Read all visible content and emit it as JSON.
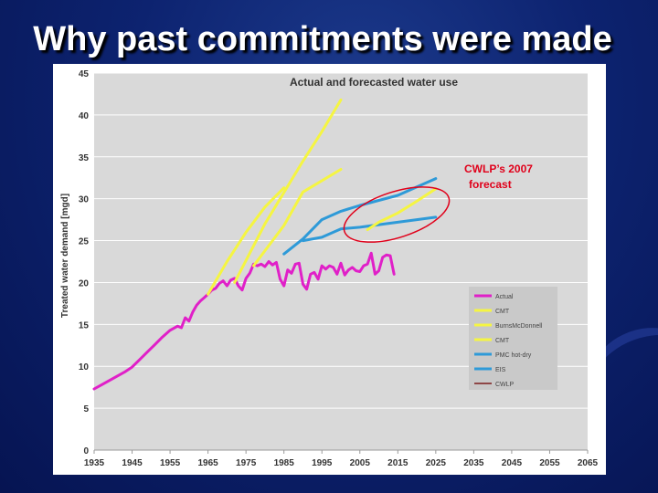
{
  "slide": {
    "title": "Why past commitments were made"
  },
  "annotation": {
    "line1": "CWLP’s 2007",
    "line2": "forecast",
    "color": "#e0001a"
  },
  "colors": {
    "actual": "#e020c8",
    "forecast_yellow": "#f5f542",
    "forecast_blue": "#2e9ad8",
    "cwlp": "#7a1c1c",
    "plot_bg": "#d9d9d9",
    "slide_bg": "#0d2370"
  },
  "chart_data": {
    "type": "line",
    "title": "Actual and forecasted water use",
    "xlabel": "",
    "ylabel": "Treated water demand [mgd]",
    "xlim": [
      1935,
      2065
    ],
    "ylim": [
      0,
      45
    ],
    "xticks": [
      1935,
      1945,
      1955,
      1965,
      1975,
      1985,
      1995,
      2005,
      2015,
      2025,
      2035,
      2045,
      2055,
      2065
    ],
    "yticks": [
      0,
      5,
      10,
      15,
      20,
      25,
      30,
      35,
      40,
      45
    ],
    "grid": "horizontal",
    "legend_position": "lower-right",
    "series": [
      {
        "name": "Actual",
        "color": "#e020c8",
        "x": [
          1935,
          1937,
          1939,
          1941,
          1943,
          1945,
          1947,
          1949,
          1951,
          1953,
          1955,
          1957,
          1958,
          1959,
          1960,
          1961,
          1962,
          1963,
          1964,
          1965,
          1966,
          1967,
          1968,
          1969,
          1970,
          1971,
          1972,
          1973,
          1974,
          1975,
          1976,
          1977,
          1978,
          1979,
          1980,
          1981,
          1982,
          1983,
          1984,
          1985,
          1986,
          1987,
          1988,
          1989,
          1990,
          1991,
          1992,
          1993,
          1994,
          1995,
          1996,
          1997,
          1998,
          1999,
          2000,
          2001,
          2002,
          2003,
          2004,
          2005,
          2006,
          2007,
          2008,
          2009,
          2010,
          2011,
          2012,
          2013,
          2014
        ],
        "values": [
          7.3,
          7.8,
          8.3,
          8.8,
          9.3,
          9.9,
          10.8,
          11.7,
          12.6,
          13.5,
          14.3,
          14.8,
          14.6,
          15.8,
          15.4,
          16.5,
          17.3,
          17.8,
          18.2,
          18.6,
          19.1,
          19.3,
          19.9,
          20.2,
          19.6,
          20.3,
          20.5,
          19.6,
          19.1,
          20.5,
          21.1,
          22.2,
          22.0,
          22.2,
          21.9,
          22.5,
          22.1,
          22.4,
          20.4,
          19.6,
          21.5,
          21.1,
          22.2,
          22.3,
          19.8,
          19.2,
          21.0,
          21.2,
          20.4,
          22.0,
          21.6,
          22.0,
          21.8,
          21.0,
          22.3,
          20.9,
          21.5,
          21.8,
          21.4,
          21.3,
          22.0,
          22.2,
          23.5,
          21.0,
          21.4,
          23.0,
          23.3,
          23.2,
          21.0
        ]
      },
      {
        "name": "CMT",
        "color": "#f5f542",
        "x": [
          1965,
          1970,
          1975,
          1980,
          1985
        ],
        "values": [
          18.6,
          22.5,
          26.0,
          29.0,
          31.3
        ]
      },
      {
        "name": "BurnsMcDonnell",
        "color": "#f5f542",
        "x": [
          1972,
          1980,
          1990,
          1995,
          2000
        ],
        "values": [
          20.0,
          27.0,
          34.5,
          38.0,
          41.8
        ]
      },
      {
        "name": "CMT",
        "color": "#f5f542",
        "x": [
          1977,
          1985,
          1990,
          2000
        ],
        "values": [
          22.0,
          26.8,
          30.8,
          33.5
        ]
      },
      {
        "name": "PMC hot-dry",
        "color": "#2e9ad8",
        "x": [
          1985,
          1990,
          1995,
          2000,
          2005,
          2010,
          2015,
          2020,
          2025
        ],
        "values": [
          23.4,
          25.2,
          27.5,
          28.5,
          29.2,
          29.8,
          30.4,
          31.4,
          32.4
        ]
      },
      {
        "name": "EIS",
        "color": "#2e9ad8",
        "x": [
          1990,
          1995,
          2000,
          2005,
          2010,
          2015,
          2020,
          2025
        ],
        "values": [
          25.0,
          25.4,
          26.4,
          26.6,
          26.9,
          27.2,
          27.5,
          27.8
        ]
      },
      {
        "name": "CWLP",
        "color": "#f5f542",
        "x": [
          2007,
          2010,
          2015,
          2020,
          2025
        ],
        "values": [
          26.3,
          27.2,
          28.3,
          29.7,
          31.2
        ]
      }
    ],
    "legend": [
      {
        "label": "Actual",
        "color": "#e020c8",
        "width": 3
      },
      {
        "label": "CMT",
        "color": "#f5f542",
        "width": 3
      },
      {
        "label": "BurnsMcDonnell",
        "color": "#f5f542",
        "width": 3
      },
      {
        "label": "CMT",
        "color": "#f5f542",
        "width": 3
      },
      {
        "label": "PMC hot-dry",
        "color": "#2e9ad8",
        "width": 3
      },
      {
        "label": "EIS",
        "color": "#2e9ad8",
        "width": 3
      },
      {
        "label": "CWLP",
        "color": "#7a1c1c",
        "width": 1.5
      }
    ]
  }
}
